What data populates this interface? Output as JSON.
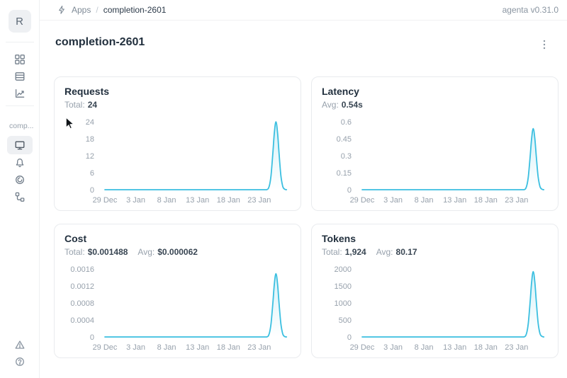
{
  "header": {
    "breadcrumb": {
      "app_label": "Apps",
      "separator": "/",
      "current": "completion-2601"
    },
    "version": "agenta v0.31.0"
  },
  "sidebar": {
    "logo_letter": "R",
    "workspace_label": "comp..."
  },
  "page": {
    "title": "completion-2601"
  },
  "colors": {
    "line": "#3bbfe0",
    "tick_text": "#97a1ac",
    "fill_top_opacity": "0.22"
  },
  "chart_data": [
    {
      "id": "requests",
      "type": "area",
      "title": "Requests",
      "stats": [
        {
          "label": "Total:",
          "value": "24"
        }
      ],
      "x_tick_labels": [
        "29 Dec",
        "3 Jan",
        "8 Jan",
        "13 Jan",
        "18 Jan",
        "23 Jan"
      ],
      "x_tick_days": [
        0,
        5,
        10,
        15,
        20,
        25
      ],
      "x_domain": [
        0,
        30.3
      ],
      "y_ticks": [
        0,
        6,
        12,
        18,
        24
      ],
      "y_max": 24,
      "points": [
        [
          0,
          0
        ],
        [
          5,
          0
        ],
        [
          10,
          0
        ],
        [
          15,
          0
        ],
        [
          20,
          0
        ],
        [
          25,
          0
        ],
        [
          26.2,
          0
        ],
        [
          26.6,
          1.2
        ],
        [
          26.9,
          5
        ],
        [
          27.2,
          13
        ],
        [
          27.45,
          20.4
        ],
        [
          27.7,
          24
        ],
        [
          27.95,
          20.4
        ],
        [
          28.2,
          13
        ],
        [
          28.5,
          5
        ],
        [
          28.8,
          1.2
        ],
        [
          29.1,
          0.2
        ],
        [
          29.4,
          0
        ]
      ]
    },
    {
      "id": "latency",
      "type": "area",
      "title": "Latency",
      "stats": [
        {
          "label": "Avg:",
          "value": "0.54s"
        }
      ],
      "x_tick_labels": [
        "29 Dec",
        "3 Jan",
        "8 Jan",
        "13 Jan",
        "18 Jan",
        "23 Jan"
      ],
      "x_tick_days": [
        0,
        5,
        10,
        15,
        20,
        25
      ],
      "x_domain": [
        0,
        30.3
      ],
      "y_ticks": [
        0,
        0.15,
        0.3,
        0.45,
        0.6
      ],
      "y_max": 0.6,
      "points": [
        [
          0,
          0
        ],
        [
          5,
          0
        ],
        [
          10,
          0
        ],
        [
          15,
          0
        ],
        [
          20,
          0
        ],
        [
          25,
          0
        ],
        [
          26.2,
          0
        ],
        [
          26.6,
          0.027
        ],
        [
          26.9,
          0.113
        ],
        [
          27.2,
          0.292
        ],
        [
          27.45,
          0.459
        ],
        [
          27.7,
          0.54
        ],
        [
          27.95,
          0.459
        ],
        [
          28.2,
          0.292
        ],
        [
          28.5,
          0.113
        ],
        [
          28.8,
          0.027
        ],
        [
          29.1,
          0.005
        ],
        [
          29.4,
          0
        ]
      ]
    },
    {
      "id": "cost",
      "type": "area",
      "title": "Cost",
      "stats": [
        {
          "label": "Total:",
          "value": "$0.001488"
        },
        {
          "label": "Avg:",
          "value": "$0.000062"
        }
      ],
      "x_tick_labels": [
        "29 Dec",
        "3 Jan",
        "8 Jan",
        "13 Jan",
        "18 Jan",
        "23 Jan"
      ],
      "x_tick_days": [
        0,
        5,
        10,
        15,
        20,
        25
      ],
      "x_domain": [
        0,
        30.3
      ],
      "y_ticks": [
        0,
        0.0004,
        0.0008,
        0.0012,
        0.0016
      ],
      "y_max": 0.0016,
      "points": [
        [
          0,
          0
        ],
        [
          5,
          0
        ],
        [
          10,
          0
        ],
        [
          15,
          0
        ],
        [
          20,
          0
        ],
        [
          25,
          0
        ],
        [
          26.2,
          0
        ],
        [
          26.6,
          7.4e-05
        ],
        [
          26.9,
          0.00031
        ],
        [
          27.2,
          0.0008
        ],
        [
          27.45,
          0.001265
        ],
        [
          27.7,
          0.001488
        ],
        [
          27.95,
          0.001265
        ],
        [
          28.2,
          0.0008
        ],
        [
          28.5,
          0.00031
        ],
        [
          28.8,
          7.4e-05
        ],
        [
          29.1,
          1e-05
        ],
        [
          29.4,
          0
        ]
      ]
    },
    {
      "id": "tokens",
      "type": "area",
      "title": "Tokens",
      "stats": [
        {
          "label": "Total:",
          "value": "1,924"
        },
        {
          "label": "Avg:",
          "value": "80.17"
        }
      ],
      "x_tick_labels": [
        "29 Dec",
        "3 Jan",
        "8 Jan",
        "13 Jan",
        "18 Jan",
        "23 Jan"
      ],
      "x_tick_days": [
        0,
        5,
        10,
        15,
        20,
        25
      ],
      "x_domain": [
        0,
        30.3
      ],
      "y_ticks": [
        0,
        500,
        1000,
        1500,
        2000
      ],
      "y_max": 2000,
      "points": [
        [
          0,
          0
        ],
        [
          5,
          0
        ],
        [
          10,
          0
        ],
        [
          15,
          0
        ],
        [
          20,
          0
        ],
        [
          25,
          0
        ],
        [
          26.2,
          0
        ],
        [
          26.6,
          96
        ],
        [
          26.9,
          404
        ],
        [
          27.2,
          1039
        ],
        [
          27.45,
          1635
        ],
        [
          27.7,
          1924
        ],
        [
          27.95,
          1635
        ],
        [
          28.2,
          1039
        ],
        [
          28.5,
          404
        ],
        [
          28.8,
          96
        ],
        [
          29.1,
          19
        ],
        [
          29.4,
          0
        ]
      ]
    }
  ]
}
